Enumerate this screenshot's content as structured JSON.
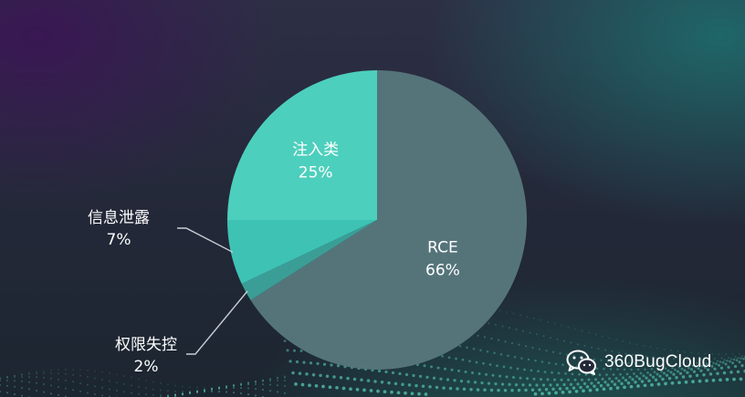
{
  "chart_data": {
    "type": "pie",
    "start_angle_deg": 0,
    "direction": "clockwise",
    "slices": [
      {
        "label": "RCE",
        "value": 66,
        "display": "66%",
        "color": "#55747a",
        "label_position": "inside"
      },
      {
        "label": "权限失控",
        "value": 2,
        "display": "2%",
        "color": "#3a9e96",
        "label_position": "outside"
      },
      {
        "label": "信息泄露",
        "value": 7,
        "display": "7%",
        "color": "#3ec2b4",
        "label_position": "outside"
      },
      {
        "label": "注入类",
        "value": 25,
        "display": "25%",
        "color": "#4dcfbd",
        "label_position": "inside"
      }
    ],
    "legend": "none"
  },
  "watermark": {
    "icon": "wechat-icon",
    "text": "360BugCloud"
  },
  "colors": {
    "label_text": "#ffffff",
    "leader_line": "#c9cfd6"
  }
}
